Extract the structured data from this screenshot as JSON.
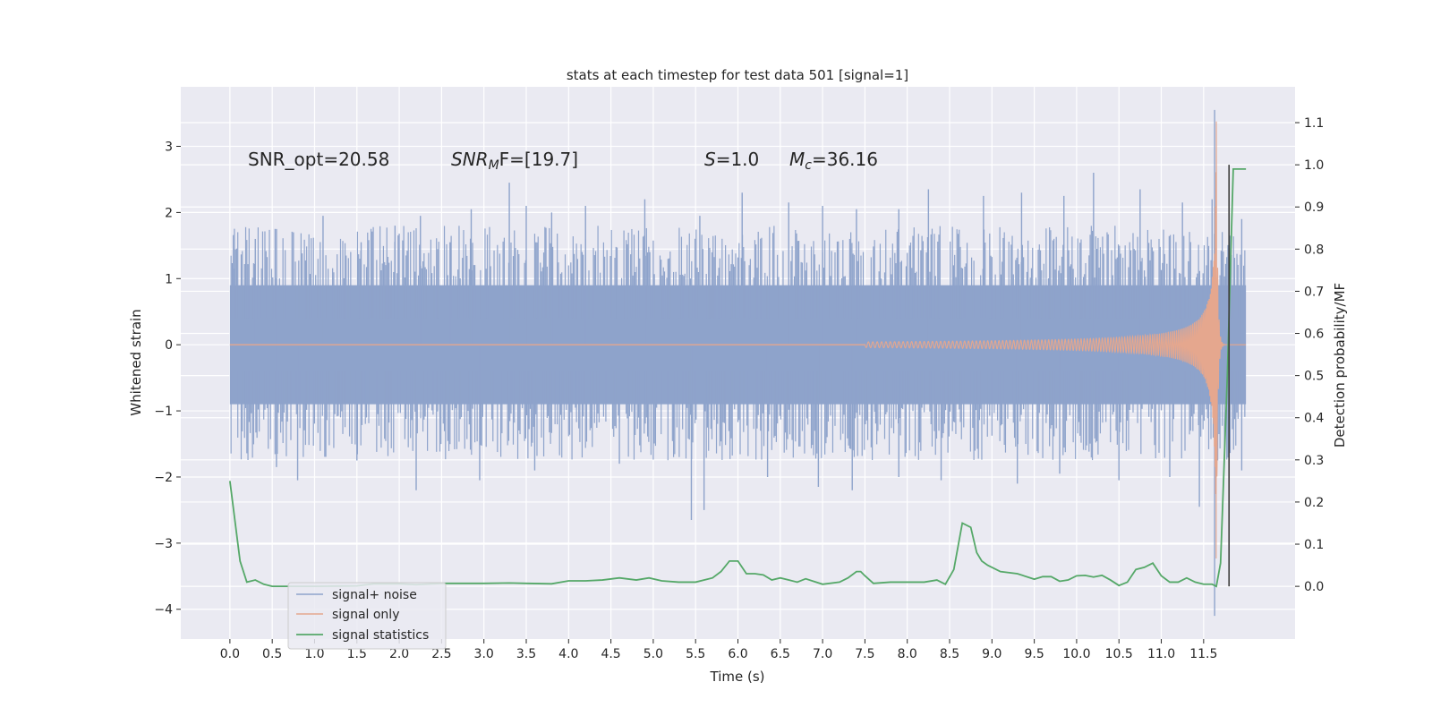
{
  "chart_data": {
    "type": "line",
    "title": "stats at each timestep for test data 501 [signal=1]",
    "xlabel": "Time (s)",
    "ylabel_left": "Whitened strain",
    "ylabel_right": "Detection probability/MF",
    "xlim": [
      -0.58,
      12.58
    ],
    "ylim_left": [
      -4.45,
      3.9
    ],
    "ylim_right": [
      -0.125,
      1.185
    ],
    "xticks": [
      0.0,
      0.5,
      1.0,
      1.5,
      2.0,
      2.5,
      3.0,
      3.5,
      4.0,
      4.5,
      5.0,
      5.5,
      6.0,
      6.5,
      7.0,
      7.5,
      8.0,
      8.5,
      9.0,
      9.5,
      10.0,
      10.5,
      11.0,
      11.5
    ],
    "xtick_labels": [
      "0.0",
      "0.5",
      "1.0",
      "1.5",
      "2.0",
      "2.5",
      "3.0",
      "3.5",
      "4.0",
      "4.5",
      "5.0",
      "5.5",
      "6.0",
      "6.5",
      "7.0",
      "7.5",
      "8.0",
      "8.5",
      "9.0",
      "9.5",
      "10.0",
      "10.5",
      "11.0",
      "11.5"
    ],
    "yticks_left": [
      -4,
      -3,
      -2,
      -1,
      0,
      1,
      2,
      3
    ],
    "ytick_labels_left": [
      "−4",
      "−3",
      "−2",
      "−1",
      "0",
      "1",
      "2",
      "3"
    ],
    "yticks_right": [
      0.0,
      0.1,
      0.2,
      0.3,
      0.4,
      0.5,
      0.6,
      0.7,
      0.8,
      0.9,
      1.0,
      1.1
    ],
    "ytick_labels_right": [
      "0.0",
      "0.1",
      "0.2",
      "0.3",
      "0.4",
      "0.5",
      "0.6",
      "0.7",
      "0.8",
      "0.9",
      "1.0",
      "1.1"
    ],
    "grid": true,
    "legend": {
      "placement": "lower-left"
    },
    "annotations": {
      "snr_opt": "SNR_opt=20.58",
      "snr_mf_main": "SNR",
      "snr_mf_sub": "M",
      "snr_mf_tail": "F=[19.7]",
      "s_main": "S",
      "s_tail": "=1.0",
      "mc_main": "M",
      "mc_sub": "c",
      "mc_tail": "=36.16"
    },
    "series": [
      {
        "name": "signal+ noise",
        "color": "#8ea3cb",
        "axis": "left",
        "t_range": [
          0.0,
          12.0
        ],
        "core_amplitude": 0.9,
        "typical_peak_range": [
          1.0,
          1.8
        ],
        "extreme_peaks": [
          {
            "x": 0.05,
            "y": 1.15
          },
          {
            "x": 0.3,
            "y": 1.6
          },
          {
            "x": 0.55,
            "y": 1.75
          },
          {
            "x": 0.75,
            "y": 1.7
          },
          {
            "x": 1.1,
            "y": 1.95
          },
          {
            "x": 1.55,
            "y": 1.55
          },
          {
            "x": 1.95,
            "y": 1.8
          },
          {
            "x": 2.25,
            "y": 1.95
          },
          {
            "x": 2.6,
            "y": 1.55
          },
          {
            "x": 2.85,
            "y": 2.05
          },
          {
            "x": 3.3,
            "y": 2.45
          },
          {
            "x": 3.5,
            "y": 2.1
          },
          {
            "x": 3.8,
            "y": 2.0
          },
          {
            "x": 4.2,
            "y": 2.1
          },
          {
            "x": 4.9,
            "y": 2.2
          },
          {
            "x": 5.55,
            "y": 1.95
          },
          {
            "x": 6.05,
            "y": 2.3
          },
          {
            "x": 6.6,
            "y": 2.15
          },
          {
            "x": 7.0,
            "y": 2.1
          },
          {
            "x": 7.4,
            "y": 2.05
          },
          {
            "x": 7.9,
            "y": 2.05
          },
          {
            "x": 8.25,
            "y": 2.35
          },
          {
            "x": 8.9,
            "y": 2.25
          },
          {
            "x": 9.35,
            "y": 2.3
          },
          {
            "x": 9.85,
            "y": 2.25
          },
          {
            "x": 10.2,
            "y": 2.6
          },
          {
            "x": 10.75,
            "y": 2.35
          },
          {
            "x": 11.25,
            "y": 2.15
          },
          {
            "x": 11.6,
            "y": 2.2
          },
          {
            "x": 11.95,
            "y": 1.9
          },
          {
            "x": 0.55,
            "y": -1.85
          },
          {
            "x": 0.8,
            "y": -2.05
          },
          {
            "x": 1.5,
            "y": -1.75
          },
          {
            "x": 2.2,
            "y": -2.2
          },
          {
            "x": 2.95,
            "y": -2.05
          },
          {
            "x": 3.6,
            "y": -1.9
          },
          {
            "x": 4.6,
            "y": -1.8
          },
          {
            "x": 5.45,
            "y": -2.65
          },
          {
            "x": 5.6,
            "y": -2.5
          },
          {
            "x": 6.35,
            "y": -2.0
          },
          {
            "x": 6.95,
            "y": -2.15
          },
          {
            "x": 7.35,
            "y": -2.2
          },
          {
            "x": 7.9,
            "y": -2.0
          },
          {
            "x": 8.4,
            "y": -2.05
          },
          {
            "x": 9.3,
            "y": -2.1
          },
          {
            "x": 9.8,
            "y": -1.95
          },
          {
            "x": 10.5,
            "y": -2.05
          },
          {
            "x": 11.1,
            "y": -2.0
          },
          {
            "x": 11.45,
            "y": -2.45
          },
          {
            "x": 11.63,
            "y": -4.1
          },
          {
            "x": 11.63,
            "y": 3.55
          },
          {
            "x": 11.95,
            "y": -1.9
          }
        ]
      },
      {
        "name": "signal only",
        "color": "#e5a78e",
        "axis": "left",
        "chirp_start": 7.5,
        "merger_time": 11.65,
        "peak_amplitude": 3.5,
        "ringdown_end": 12.0
      },
      {
        "name": "signal statistics",
        "color": "#55a868",
        "axis": "right",
        "x": [
          0.0,
          0.12,
          0.2,
          0.3,
          0.4,
          0.5,
          0.7,
          1.0,
          1.5,
          1.7,
          2.0,
          2.2,
          2.5,
          3.0,
          3.3,
          3.5,
          3.8,
          4.0,
          4.2,
          4.4,
          4.6,
          4.8,
          4.95,
          5.1,
          5.3,
          5.5,
          5.7,
          5.8,
          5.9,
          6.0,
          6.1,
          6.2,
          6.3,
          6.4,
          6.5,
          6.6,
          6.7,
          6.8,
          7.0,
          7.2,
          7.3,
          7.4,
          7.45,
          7.5,
          7.6,
          7.8,
          8.0,
          8.2,
          8.35,
          8.45,
          8.55,
          8.65,
          8.75,
          8.82,
          8.88,
          8.95,
          9.1,
          9.3,
          9.5,
          9.6,
          9.7,
          9.8,
          9.9,
          10.0,
          10.1,
          10.2,
          10.3,
          10.4,
          10.5,
          10.6,
          10.7,
          10.8,
          10.9,
          11.0,
          11.1,
          11.2,
          11.3,
          11.4,
          11.5,
          11.6,
          11.65,
          11.7,
          11.78,
          11.85,
          11.9,
          12.0
        ],
        "y": [
          0.25,
          0.06,
          0.01,
          0.015,
          0.005,
          0.0,
          0.0,
          0.0,
          0.001,
          0.006,
          0.006,
          0.004,
          0.007,
          0.007,
          0.008,
          0.007,
          0.006,
          0.013,
          0.013,
          0.015,
          0.02,
          0.015,
          0.02,
          0.013,
          0.01,
          0.01,
          0.02,
          0.035,
          0.06,
          0.06,
          0.03,
          0.03,
          0.027,
          0.015,
          0.02,
          0.015,
          0.01,
          0.018,
          0.005,
          0.01,
          0.02,
          0.035,
          0.035,
          0.025,
          0.007,
          0.01,
          0.01,
          0.01,
          0.015,
          0.005,
          0.04,
          0.15,
          0.14,
          0.08,
          0.06,
          0.05,
          0.035,
          0.03,
          0.017,
          0.023,
          0.023,
          0.012,
          0.015,
          0.025,
          0.026,
          0.022,
          0.026,
          0.015,
          0.002,
          0.01,
          0.04,
          0.045,
          0.055,
          0.025,
          0.01,
          0.01,
          0.02,
          0.01,
          0.005,
          0.005,
          0.0,
          0.055,
          0.5,
          0.99,
          0.99,
          0.99
        ]
      },
      {
        "name": "",
        "color": "#3d3d3d",
        "axis": "right",
        "type": "vline",
        "x": 11.8,
        "y": [
          0.0,
          1.0
        ]
      }
    ]
  }
}
